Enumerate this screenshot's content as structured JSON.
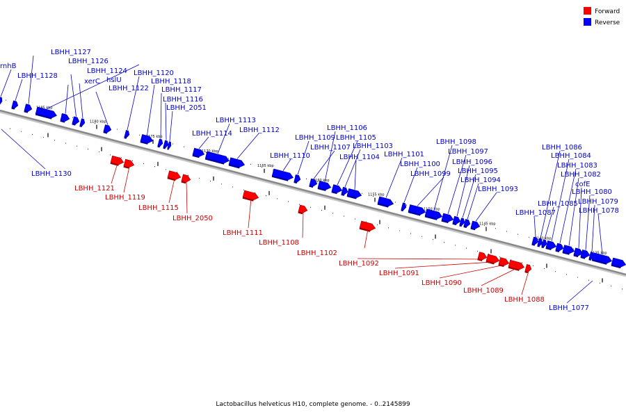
{
  "caption": "Lactobacillus helveticus H10, complete genome. - 0..2145899",
  "legend": {
    "forward_label": "Forward",
    "reverse_label": "Reverse",
    "forward_color": "#ff0000",
    "reverse_color": "#0000ff"
  },
  "ticks": [
    "1185 kbp",
    "1180 kbp",
    "1175 kbp",
    "1170 kbp",
    "1165 kbp",
    "1160 kbp",
    "1155 kbp",
    "1150 kbp",
    "1145 kbp",
    "1140 kbp",
    "1135 kbp"
  ],
  "genes": [
    {
      "label": "rnhB",
      "strand": "reverse"
    },
    {
      "label": "LBHH_1128",
      "strand": "reverse"
    },
    {
      "label": "LBHH_1127",
      "strand": "reverse"
    },
    {
      "label": "LBHH_1126",
      "strand": "reverse"
    },
    {
      "label": "xerC",
      "strand": "reverse"
    },
    {
      "label": "LBHH_1124",
      "strand": "reverse"
    },
    {
      "label": "hslU",
      "strand": "reverse"
    },
    {
      "label": "LBHH_1122",
      "strand": "reverse"
    },
    {
      "label": "LBHH_1120",
      "strand": "reverse"
    },
    {
      "label": "LBHH_1118",
      "strand": "reverse"
    },
    {
      "label": "LBHH_1117",
      "strand": "reverse"
    },
    {
      "label": "LBHH_1116",
      "strand": "reverse"
    },
    {
      "label": "LBHH_2051",
      "strand": "reverse"
    },
    {
      "label": "LBHH_1130",
      "strand": "reverse"
    },
    {
      "label": "LBHH_1121",
      "strand": "forward"
    },
    {
      "label": "LBHH_1119",
      "strand": "forward"
    },
    {
      "label": "LBHH_1115",
      "strand": "forward"
    },
    {
      "label": "LBHH_2050",
      "strand": "forward"
    },
    {
      "label": "LBHH_1114",
      "strand": "reverse"
    },
    {
      "label": "LBHH_1113",
      "strand": "reverse"
    },
    {
      "label": "LBHH_1112",
      "strand": "reverse"
    },
    {
      "label": "LBHH_1111",
      "strand": "forward"
    },
    {
      "label": "LBHH_1110",
      "strand": "reverse"
    },
    {
      "label": "LBHH_1109",
      "strand": "reverse"
    },
    {
      "label": "LBHH_1108",
      "strand": "forward"
    },
    {
      "label": "LBHH_1107",
      "strand": "reverse"
    },
    {
      "label": "LBHH_1106",
      "strand": "reverse"
    },
    {
      "label": "LBHH_1105",
      "strand": "reverse"
    },
    {
      "label": "LBHH_1103",
      "strand": "reverse"
    },
    {
      "label": "LBHH_1104",
      "strand": "reverse"
    },
    {
      "label": "LBHH_1102",
      "strand": "forward"
    },
    {
      "label": "LBHH_1101",
      "strand": "reverse"
    },
    {
      "label": "LBHH_1100",
      "strand": "reverse"
    },
    {
      "label": "LBHH_1099",
      "strand": "reverse"
    },
    {
      "label": "LBHH_1098",
      "strand": "reverse"
    },
    {
      "label": "LBHH_1097",
      "strand": "reverse"
    },
    {
      "label": "LBHH_1096",
      "strand": "reverse"
    },
    {
      "label": "LBHH_1095",
      "strand": "reverse"
    },
    {
      "label": "LBHH_1094",
      "strand": "reverse"
    },
    {
      "label": "LBHH_1093",
      "strand": "reverse"
    },
    {
      "label": "LBHH_1092",
      "strand": "forward"
    },
    {
      "label": "LBHH_1091",
      "strand": "forward"
    },
    {
      "label": "LBHH_1090",
      "strand": "forward"
    },
    {
      "label": "LBHH_1089",
      "strand": "forward"
    },
    {
      "label": "LBHH_1088",
      "strand": "forward"
    },
    {
      "label": "LBHH_1087",
      "strand": "reverse"
    },
    {
      "label": "LBHH_1086",
      "strand": "reverse"
    },
    {
      "label": "LBHH_1085",
      "strand": "reverse"
    },
    {
      "label": "LBHH_1084",
      "strand": "reverse"
    },
    {
      "label": "LBHH_1083",
      "strand": "reverse"
    },
    {
      "label": "LBHH_1082",
      "strand": "reverse"
    },
    {
      "label": "cofE",
      "strand": "reverse"
    },
    {
      "label": "LBHH_1080",
      "strand": "reverse"
    },
    {
      "label": "LBHH_1079",
      "strand": "reverse"
    },
    {
      "label": "LBHH_1078",
      "strand": "reverse"
    },
    {
      "label": "LBHH_1077",
      "strand": "reverse"
    }
  ]
}
